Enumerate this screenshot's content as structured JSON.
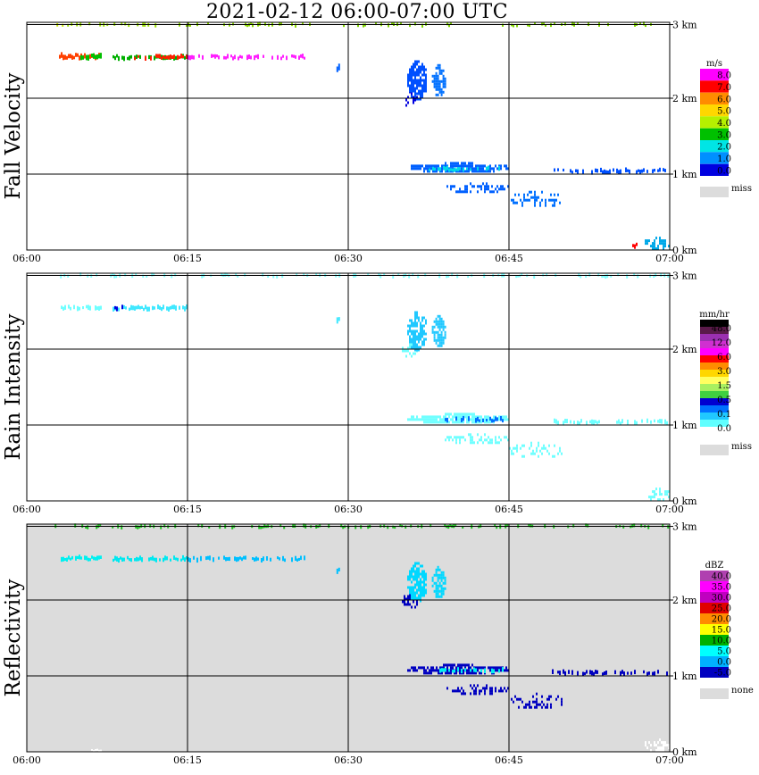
{
  "title": "2021-02-12   06:00-07:00 UTC",
  "chart_data": [
    {
      "type": "heatmap",
      "panel_label": "Fall Velocity",
      "x_tick_labels": [
        "06:00",
        "06:15",
        "06:30",
        "06:45",
        "07:00"
      ],
      "x_range": [
        "06:00",
        "07:00"
      ],
      "y_tick_labels": [
        "0 km",
        "1 km",
        "2 km",
        "3 km"
      ],
      "y_range_km": [
        0,
        3.0
      ],
      "grid": true,
      "background": "#ffffff",
      "legend": {
        "unit": "m/s",
        "labels": [
          "8.0",
          "7.0",
          "6.0",
          "5.0",
          "4.0",
          "3.0",
          "2.0",
          "1.0",
          "0.0"
        ],
        "colors": [
          "#ff00ff",
          "#ff0000",
          "#ff8c00",
          "#ffd700",
          "#b5f000",
          "#00c000",
          "#00e5e5",
          "#0090ff",
          "#0000e0"
        ],
        "missing_label": "miss",
        "missing_color": "#dcdcdc",
        "placement": "right"
      },
      "features": [
        {
          "t_start_min": 2.6,
          "t_end_min": 3.6,
          "h_km": 2.97,
          "h_depth_km": 0.04,
          "color": "#c8e800",
          "density": 0.5
        },
        {
          "t_start_min": 3.6,
          "t_end_min": 12.0,
          "h_km": 2.97,
          "h_depth_km": 0.05,
          "color": "#9be000",
          "density": 0.35
        },
        {
          "t_start_min": 14.0,
          "t_end_min": 26.5,
          "h_km": 2.97,
          "h_depth_km": 0.05,
          "color": "#8cd800",
          "density": 0.35
        },
        {
          "t_start_min": 29.5,
          "t_end_min": 40.0,
          "h_km": 2.97,
          "h_depth_km": 0.05,
          "color": "#7fd400",
          "density": 0.35
        },
        {
          "t_start_min": 43.0,
          "t_end_min": 60.0,
          "h_km": 2.97,
          "h_depth_km": 0.05,
          "color": "#7fd400",
          "density": 0.3
        },
        {
          "t_start_min": 3.0,
          "t_end_min": 7.0,
          "h_km": 2.55,
          "h_depth_km": 0.07,
          "color": "#ff4000",
          "density": 0.9
        },
        {
          "t_start_min": 5.0,
          "t_end_min": 7.0,
          "h_km": 2.55,
          "h_depth_km": 0.07,
          "color": "#00c000",
          "density": 0.7
        },
        {
          "t_start_min": 8.0,
          "t_end_min": 15.0,
          "h_km": 2.54,
          "h_depth_km": 0.06,
          "color": "#00b000",
          "density": 0.8
        },
        {
          "t_start_min": 10.0,
          "t_end_min": 15.0,
          "h_km": 2.54,
          "h_depth_km": 0.06,
          "color": "#ff2000",
          "density": 0.6
        },
        {
          "t_start_min": 15.0,
          "t_end_min": 26.0,
          "h_km": 2.54,
          "h_depth_km": 0.06,
          "color": "#ff20ff",
          "density": 0.55
        },
        {
          "t_start_min": 28.9,
          "t_end_min": 29.1,
          "h_km": 2.4,
          "h_depth_km": 0.08,
          "color": "#0060ff",
          "density": 1.0
        },
        {
          "t_start_min": 35.0,
          "t_end_min": 36.5,
          "h_km": 2.0,
          "h_depth_km": 0.2,
          "color": "#0000e0",
          "density": 0.5
        },
        {
          "t_start_min": 35.5,
          "t_end_min": 37.3,
          "h_km": 2.25,
          "h_depth_km": 0.5,
          "color": "#0050ff",
          "density": 0.75
        },
        {
          "t_start_min": 37.8,
          "t_end_min": 39.0,
          "h_km": 2.25,
          "h_depth_km": 0.4,
          "color": "#0070ff",
          "density": 0.75
        },
        {
          "t_start_min": 35.5,
          "t_end_min": 45.0,
          "h_km": 1.1,
          "h_depth_km": 0.12,
          "color": "#0060ff",
          "density": 0.8
        },
        {
          "t_start_min": 37.5,
          "t_end_min": 44.5,
          "h_km": 1.07,
          "h_depth_km": 0.06,
          "color": "#00d8e8",
          "density": 0.5
        },
        {
          "t_start_min": 39.0,
          "t_end_min": 45.0,
          "h_km": 0.83,
          "h_depth_km": 0.12,
          "color": "#0060ff",
          "density": 0.45
        },
        {
          "t_start_min": 45.0,
          "t_end_min": 50.0,
          "h_km": 0.68,
          "h_depth_km": 0.2,
          "color": "#0070ff",
          "density": 0.3
        },
        {
          "t_start_min": 49.0,
          "t_end_min": 60.0,
          "h_km": 1.04,
          "h_depth_km": 0.06,
          "color": "#0050ff",
          "density": 0.5
        },
        {
          "t_start_min": 57.5,
          "t_end_min": 60.0,
          "h_km": 0.1,
          "h_depth_km": 0.15,
          "color": "#00a8e8",
          "density": 0.6
        },
        {
          "t_start_min": 56.5,
          "t_end_min": 57.0,
          "h_km": 0.06,
          "h_depth_km": 0.06,
          "color": "#ff0000",
          "density": 1.0
        }
      ]
    },
    {
      "type": "heatmap",
      "panel_label": "Rain Intensity",
      "x_tick_labels": [
        "06:00",
        "06:15",
        "06:30",
        "06:45",
        "07:00"
      ],
      "x_range": [
        "06:00",
        "07:00"
      ],
      "y_tick_labels": [
        "0 km",
        "1 km",
        "2 km",
        "3 km"
      ],
      "y_range_km": [
        0,
        3.0
      ],
      "grid": true,
      "background": "#ffffff",
      "legend": {
        "unit": "mm/hr",
        "labels": [
          "48.0",
          "12.0",
          "6.0",
          "3.0",
          "1.5",
          "0.5",
          "0.1",
          "0.0"
        ],
        "colors": [
          "#000000",
          "#5a1a4a",
          "#9b30b0",
          "#d030d0",
          "#ff00ff",
          "#ff0000",
          "#ff8c00",
          "#ffd700",
          "#ffff60",
          "#a8f060",
          "#40d040",
          "#0000d0",
          "#0070ff",
          "#20c8ff",
          "#60ffff",
          "#ffffff"
        ],
        "missing_label": "miss",
        "missing_color": "#dcdcdc",
        "placement": "right"
      },
      "features": [
        {
          "t_start_min": 2.6,
          "t_end_min": 60.0,
          "h_km": 2.97,
          "h_depth_km": 0.05,
          "color": "#80ffff",
          "density": 0.3
        },
        {
          "t_start_min": 3.0,
          "t_end_min": 7.0,
          "h_km": 2.55,
          "h_depth_km": 0.06,
          "color": "#70ffff",
          "density": 0.8
        },
        {
          "t_start_min": 8.0,
          "t_end_min": 15.0,
          "h_km": 2.54,
          "h_depth_km": 0.06,
          "color": "#40e8ff",
          "density": 0.8
        },
        {
          "t_start_min": 8.0,
          "t_end_min": 9.0,
          "h_km": 2.54,
          "h_depth_km": 0.06,
          "color": "#0000e0",
          "density": 0.8
        },
        {
          "t_start_min": 28.9,
          "t_end_min": 29.1,
          "h_km": 2.4,
          "h_depth_km": 0.08,
          "color": "#40e8ff",
          "density": 1.0
        },
        {
          "t_start_min": 35.0,
          "t_end_min": 36.5,
          "h_km": 2.0,
          "h_depth_km": 0.2,
          "color": "#70ffff",
          "density": 0.5
        },
        {
          "t_start_min": 35.5,
          "t_end_min": 37.3,
          "h_km": 2.25,
          "h_depth_km": 0.5,
          "color": "#20c8ff",
          "density": 0.75
        },
        {
          "t_start_min": 37.8,
          "t_end_min": 39.0,
          "h_km": 2.25,
          "h_depth_km": 0.4,
          "color": "#20c8ff",
          "density": 0.75
        },
        {
          "t_start_min": 35.5,
          "t_end_min": 45.0,
          "h_km": 1.1,
          "h_depth_km": 0.12,
          "color": "#70ffff",
          "density": 0.8
        },
        {
          "t_start_min": 39.0,
          "t_end_min": 44.5,
          "h_km": 1.07,
          "h_depth_km": 0.06,
          "color": "#0070ff",
          "density": 0.4
        },
        {
          "t_start_min": 39.0,
          "t_end_min": 45.0,
          "h_km": 0.83,
          "h_depth_km": 0.12,
          "color": "#70ffff",
          "density": 0.45
        },
        {
          "t_start_min": 45.0,
          "t_end_min": 50.0,
          "h_km": 0.68,
          "h_depth_km": 0.2,
          "color": "#70ffff",
          "density": 0.3
        },
        {
          "t_start_min": 49.0,
          "t_end_min": 60.0,
          "h_km": 1.04,
          "h_depth_km": 0.06,
          "color": "#70ffff",
          "density": 0.5
        },
        {
          "t_start_min": 57.5,
          "t_end_min": 60.0,
          "h_km": 0.1,
          "h_depth_km": 0.15,
          "color": "#70ffff",
          "density": 0.5
        }
      ]
    },
    {
      "type": "heatmap",
      "panel_label": "Reflectivity",
      "x_tick_labels": [
        "06:00",
        "06:15",
        "06:30",
        "06:45",
        "07:00"
      ],
      "x_range": [
        "06:00",
        "07:00"
      ],
      "y_tick_labels": [
        "0 km",
        "1 km",
        "2 km",
        "3 km"
      ],
      "y_range_km": [
        0,
        3.0
      ],
      "grid": true,
      "background": "#dcdcdc",
      "legend": {
        "unit": "dBZ",
        "labels": [
          "40.0",
          "35.0",
          "30.0",
          "25.0",
          "20.0",
          "15.0",
          "10.0",
          "5.0",
          "0.0",
          "-5.0"
        ],
        "colors": [
          "#b040b0",
          "#ff00ff",
          "#c000c0",
          "#e00000",
          "#ff8c00",
          "#ffff00",
          "#00b000",
          "#00ffff",
          "#00b0ff",
          "#0000c0"
        ],
        "missing_label": "none",
        "missing_color": "#dcdcdc",
        "placement": "right"
      },
      "features": [
        {
          "t_start_min": 2.6,
          "t_end_min": 60.0,
          "h_km": 2.97,
          "h_depth_km": 0.05,
          "color": "#20c020",
          "density": 0.3
        },
        {
          "t_start_min": 3.0,
          "t_end_min": 7.0,
          "h_km": 2.55,
          "h_depth_km": 0.06,
          "color": "#00f0f0",
          "density": 0.85
        },
        {
          "t_start_min": 8.0,
          "t_end_min": 15.0,
          "h_km": 2.54,
          "h_depth_km": 0.06,
          "color": "#00e8f0",
          "density": 0.8
        },
        {
          "t_start_min": 15.0,
          "t_end_min": 26.0,
          "h_km": 2.54,
          "h_depth_km": 0.06,
          "color": "#00c0ff",
          "density": 0.5
        },
        {
          "t_start_min": 28.9,
          "t_end_min": 29.1,
          "h_km": 2.4,
          "h_depth_km": 0.08,
          "color": "#00c0ff",
          "density": 1.0
        },
        {
          "t_start_min": 35.0,
          "t_end_min": 36.5,
          "h_km": 2.0,
          "h_depth_km": 0.2,
          "color": "#0000c0",
          "density": 0.5
        },
        {
          "t_start_min": 35.5,
          "t_end_min": 37.3,
          "h_km": 2.25,
          "h_depth_km": 0.5,
          "color": "#00d8ff",
          "density": 0.75
        },
        {
          "t_start_min": 37.8,
          "t_end_min": 39.0,
          "h_km": 2.25,
          "h_depth_km": 0.4,
          "color": "#00d8ff",
          "density": 0.75
        },
        {
          "t_start_min": 35.5,
          "t_end_min": 45.0,
          "h_km": 1.1,
          "h_depth_km": 0.12,
          "color": "#0000c0",
          "density": 0.8
        },
        {
          "t_start_min": 38.5,
          "t_end_min": 44.5,
          "h_km": 1.07,
          "h_depth_km": 0.06,
          "color": "#00f0f0",
          "density": 0.55
        },
        {
          "t_start_min": 39.0,
          "t_end_min": 45.0,
          "h_km": 0.83,
          "h_depth_km": 0.12,
          "color": "#0000c0",
          "density": 0.45
        },
        {
          "t_start_min": 45.0,
          "t_end_min": 50.0,
          "h_km": 0.68,
          "h_depth_km": 0.2,
          "color": "#0000c0",
          "density": 0.3
        },
        {
          "t_start_min": 49.0,
          "t_end_min": 60.0,
          "h_km": 1.04,
          "h_depth_km": 0.06,
          "color": "#0000c0",
          "density": 0.5
        },
        {
          "t_start_min": 57.5,
          "t_end_min": 60.0,
          "h_km": 0.1,
          "h_depth_km": 0.15,
          "color": "#ffffff",
          "density": 0.5
        },
        {
          "t_start_min": 6.0,
          "t_end_min": 7.0,
          "h_km": 0.02,
          "h_depth_km": 0.03,
          "color": "#ffffff",
          "density": 1.0
        }
      ]
    }
  ]
}
